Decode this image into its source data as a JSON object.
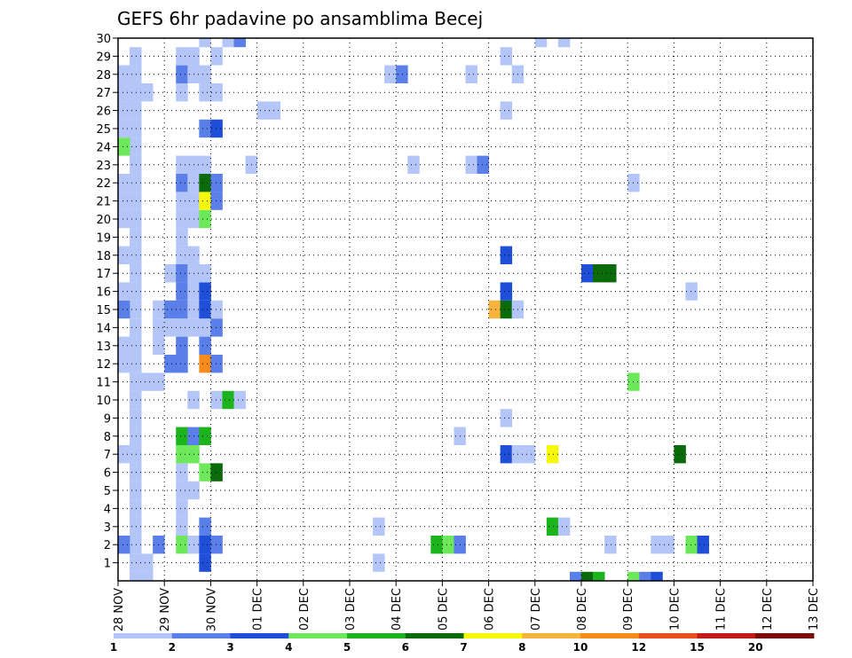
{
  "chart_data": {
    "type": "heatmap",
    "title": "GEFS 6hr padavine po ansamblima Becej",
    "xlabel": "",
    "ylabel": "",
    "x_ticks": [
      "28 NOV",
      "29 NOV",
      "30 NOV",
      "01 DEC",
      "02 DEC",
      "03 DEC",
      "04 DEC",
      "05 DEC",
      "06 DEC",
      "07 DEC",
      "08 DEC",
      "09 DEC",
      "10 DEC",
      "11 DEC",
      "12 DEC",
      "13 DEC"
    ],
    "y_ticks": [
      1,
      2,
      3,
      4,
      5,
      6,
      7,
      8,
      9,
      10,
      11,
      12,
      13,
      14,
      15,
      16,
      17,
      18,
      19,
      20,
      21,
      22,
      23,
      24,
      25,
      26,
      27,
      28,
      29,
      30
    ],
    "xlim_days": [
      0,
      15
    ],
    "ylim": [
      0,
      30
    ],
    "time_step_hours": 6,
    "grid": true,
    "colorbar": {
      "position": "bottom",
      "labels": [
        "1",
        "2",
        "3",
        "4",
        "5",
        "6",
        "7",
        "8",
        "10",
        "12",
        "15",
        "20"
      ],
      "colors": [
        "#b4c6f7",
        "#5b7fe8",
        "#1f4ed8",
        "#6de85a",
        "#1cb41c",
        "#0b6b0b",
        "#f7f70c",
        "#f7b43c",
        "#f78c1c",
        "#e8501c",
        "#c01c1c",
        "#7a0c0c"
      ]
    },
    "cells_note": "t = 6-hour step index from 28 NOV 00; m = ensemble member; c = colour class index into colorbar.colors",
    "cells": [
      [
        1,
        0,
        0
      ],
      [
        1,
        1,
        0
      ],
      [
        1,
        2,
        0
      ],
      [
        1,
        3,
        0
      ],
      [
        1,
        4,
        0
      ],
      [
        1,
        5,
        0
      ],
      [
        1,
        6,
        0
      ],
      [
        1,
        7,
        0
      ],
      [
        1,
        8,
        0
      ],
      [
        1,
        9,
        0
      ],
      [
        1,
        10,
        0
      ],
      [
        1,
        11,
        0
      ],
      [
        1,
        12,
        0
      ],
      [
        1,
        13,
        0
      ],
      [
        1,
        14,
        0
      ],
      [
        1,
        15,
        0
      ],
      [
        1,
        16,
        0
      ],
      [
        1,
        17,
        0
      ],
      [
        1,
        18,
        0
      ],
      [
        1,
        19,
        0
      ],
      [
        1,
        20,
        0
      ],
      [
        1,
        21,
        0
      ],
      [
        1,
        22,
        0
      ],
      [
        1,
        23,
        0
      ],
      [
        1,
        24,
        0
      ],
      [
        1,
        25,
        0
      ],
      [
        1,
        26,
        0
      ],
      [
        1,
        27,
        0
      ],
      [
        1,
        28,
        0
      ],
      [
        1,
        29,
        0
      ],
      [
        0,
        2,
        1
      ],
      [
        0,
        7,
        0
      ],
      [
        0,
        12,
        0
      ],
      [
        0,
        13,
        0
      ],
      [
        0,
        15,
        1
      ],
      [
        0,
        16,
        0
      ],
      [
        0,
        18,
        0
      ],
      [
        0,
        20,
        0
      ],
      [
        0,
        21,
        0
      ],
      [
        0,
        22,
        0
      ],
      [
        0,
        24,
        3
      ],
      [
        0,
        25,
        0
      ],
      [
        0,
        26,
        0
      ],
      [
        0,
        27,
        0
      ],
      [
        0,
        28,
        0
      ],
      [
        2,
        0,
        0
      ],
      [
        2,
        1,
        0
      ],
      [
        2,
        11,
        0
      ],
      [
        2,
        27,
        0
      ],
      [
        3,
        2,
        1
      ],
      [
        3,
        11,
        0
      ],
      [
        3,
        13,
        0
      ],
      [
        3,
        14,
        0
      ],
      [
        3,
        15,
        0
      ],
      [
        4,
        17,
        0
      ],
      [
        4,
        15,
        1
      ],
      [
        4,
        14,
        0
      ],
      [
        4,
        12,
        1
      ],
      [
        5,
        2,
        3
      ],
      [
        5,
        3,
        0
      ],
      [
        5,
        4,
        0
      ],
      [
        5,
        5,
        0
      ],
      [
        5,
        6,
        0
      ],
      [
        5,
        7,
        3
      ],
      [
        5,
        8,
        4
      ],
      [
        5,
        12,
        1
      ],
      [
        5,
        13,
        1
      ],
      [
        5,
        14,
        0
      ],
      [
        5,
        15,
        1
      ],
      [
        5,
        16,
        1
      ],
      [
        5,
        17,
        1
      ],
      [
        5,
        18,
        0
      ],
      [
        5,
        19,
        0
      ],
      [
        5,
        20,
        0
      ],
      [
        5,
        21,
        0
      ],
      [
        5,
        22,
        1
      ],
      [
        5,
        23,
        0
      ],
      [
        5,
        27,
        0
      ],
      [
        5,
        28,
        1
      ],
      [
        5,
        29,
        0
      ],
      [
        6,
        2,
        0
      ],
      [
        6,
        5,
        0
      ],
      [
        6,
        7,
        3
      ],
      [
        6,
        8,
        1
      ],
      [
        6,
        10,
        0
      ],
      [
        6,
        14,
        0
      ],
      [
        6,
        15,
        0
      ],
      [
        6,
        16,
        0
      ],
      [
        6,
        17,
        0
      ],
      [
        6,
        18,
        0
      ],
      [
        6,
        20,
        0
      ],
      [
        6,
        21,
        0
      ],
      [
        6,
        22,
        0
      ],
      [
        6,
        23,
        0
      ],
      [
        6,
        28,
        0
      ],
      [
        6,
        29,
        0
      ],
      [
        7,
        1,
        2
      ],
      [
        7,
        2,
        2
      ],
      [
        7,
        3,
        1
      ],
      [
        7,
        6,
        3
      ],
      [
        7,
        8,
        4
      ],
      [
        7,
        12,
        8
      ],
      [
        7,
        13,
        1
      ],
      [
        7,
        14,
        0
      ],
      [
        7,
        15,
        2
      ],
      [
        7,
        16,
        2
      ],
      [
        7,
        17,
        0
      ],
      [
        7,
        20,
        3
      ],
      [
        7,
        21,
        6
      ],
      [
        7,
        22,
        5
      ],
      [
        7,
        23,
        0
      ],
      [
        7,
        25,
        1
      ],
      [
        7,
        27,
        0
      ],
      [
        7,
        28,
        0
      ],
      [
        7,
        30,
        0
      ],
      [
        8,
        2,
        1
      ],
      [
        8,
        6,
        5
      ],
      [
        8,
        10,
        0
      ],
      [
        8,
        12,
        1
      ],
      [
        8,
        14,
        1
      ],
      [
        8,
        15,
        0
      ],
      [
        8,
        22,
        1
      ],
      [
        8,
        21,
        1
      ],
      [
        8,
        25,
        2
      ],
      [
        8,
        27,
        0
      ],
      [
        8,
        29,
        0
      ],
      [
        9,
        10,
        4
      ],
      [
        9,
        30,
        0
      ],
      [
        10,
        10,
        0
      ],
      [
        10,
        30,
        1
      ],
      [
        11,
        23,
        0
      ],
      [
        12,
        26,
        0
      ],
      [
        13,
        26,
        0
      ],
      [
        22,
        3,
        0
      ],
      [
        22,
        1,
        0
      ],
      [
        23,
        28,
        0
      ],
      [
        24,
        28,
        1
      ],
      [
        25,
        23,
        0
      ],
      [
        27,
        2,
        4
      ],
      [
        28,
        2,
        3
      ],
      [
        29,
        2,
        1
      ],
      [
        29,
        8,
        0
      ],
      [
        30,
        23,
        0
      ],
      [
        30,
        28,
        0
      ],
      [
        31,
        23,
        1
      ],
      [
        32,
        15,
        7
      ],
      [
        33,
        15,
        5
      ],
      [
        33,
        16,
        2
      ],
      [
        33,
        18,
        2
      ],
      [
        33,
        7,
        2
      ],
      [
        33,
        9,
        0
      ],
      [
        33,
        26,
        0
      ],
      [
        33,
        29,
        0
      ],
      [
        34,
        15,
        0
      ],
      [
        34,
        7,
        0
      ],
      [
        34,
        28,
        0
      ],
      [
        35,
        7,
        0
      ],
      [
        36,
        30,
        0
      ],
      [
        37,
        7,
        6
      ],
      [
        37,
        3,
        4
      ],
      [
        38,
        3,
        0
      ],
      [
        38,
        30,
        0
      ],
      [
        39,
        0,
        1
      ],
      [
        40,
        0,
        5
      ],
      [
        40,
        17,
        2
      ],
      [
        41,
        0,
        4
      ],
      [
        41,
        17,
        5
      ],
      [
        42,
        2,
        0
      ],
      [
        42,
        17,
        5
      ],
      [
        44,
        22,
        0
      ],
      [
        44,
        0,
        3
      ],
      [
        44,
        11,
        3
      ],
      [
        45,
        0,
        1
      ],
      [
        46,
        2,
        0
      ],
      [
        46,
        0,
        2
      ],
      [
        47,
        2,
        0
      ],
      [
        48,
        7,
        5
      ],
      [
        49,
        2,
        3
      ],
      [
        49,
        16,
        0
      ],
      [
        50,
        2,
        2
      ]
    ]
  }
}
